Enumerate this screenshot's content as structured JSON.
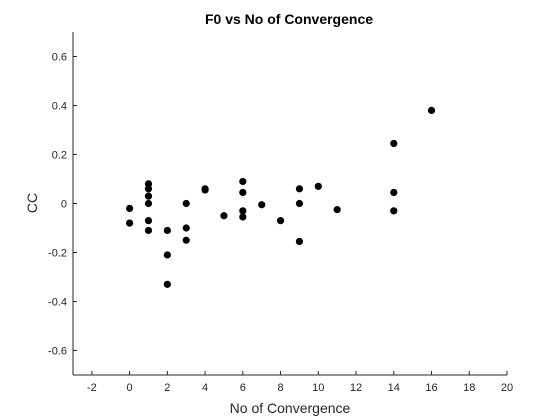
{
  "chart_data": {
    "type": "scatter",
    "title": "F0 vs No of Convergence",
    "xlabel": "No of Convergence",
    "ylabel": "CC",
    "xlim": [
      -3,
      20
    ],
    "ylim": [
      -0.7,
      0.7
    ],
    "x_ticks": [
      -2,
      0,
      2,
      4,
      6,
      8,
      10,
      12,
      14,
      16,
      18,
      20
    ],
    "y_ticks": [
      -0.6,
      -0.4,
      -0.2,
      0,
      0.2,
      0.4,
      0.6
    ],
    "x_tick_labels": [
      "-2",
      "0",
      "2",
      "4",
      "6",
      "8",
      "10",
      "12",
      "14",
      "16",
      "18",
      "20"
    ],
    "y_tick_labels": [
      "-0.6",
      "-0.4",
      "-0.2",
      "0",
      "0.2",
      "0.4",
      "0.6"
    ],
    "grid": false,
    "marker_color": "#000000",
    "points": [
      {
        "x": 0,
        "y": -0.02
      },
      {
        "x": 0,
        "y": -0.08
      },
      {
        "x": 1,
        "y": 0.08
      },
      {
        "x": 1,
        "y": 0.06
      },
      {
        "x": 1,
        "y": 0.03
      },
      {
        "x": 1,
        "y": 0.0
      },
      {
        "x": 1,
        "y": -0.07
      },
      {
        "x": 1,
        "y": -0.11
      },
      {
        "x": 2,
        "y": -0.11
      },
      {
        "x": 2,
        "y": -0.21
      },
      {
        "x": 2,
        "y": -0.33
      },
      {
        "x": 3,
        "y": 0.0
      },
      {
        "x": 3,
        "y": -0.1
      },
      {
        "x": 3,
        "y": -0.15
      },
      {
        "x": 4,
        "y": 0.06
      },
      {
        "x": 4,
        "y": 0.055
      },
      {
        "x": 5,
        "y": -0.05
      },
      {
        "x": 6,
        "y": 0.09
      },
      {
        "x": 6,
        "y": 0.045
      },
      {
        "x": 6,
        "y": -0.03
      },
      {
        "x": 6,
        "y": -0.055
      },
      {
        "x": 7,
        "y": -0.005
      },
      {
        "x": 8,
        "y": -0.07
      },
      {
        "x": 9,
        "y": 0.06
      },
      {
        "x": 9,
        "y": 0.0
      },
      {
        "x": 9,
        "y": -0.155
      },
      {
        "x": 10,
        "y": 0.07
      },
      {
        "x": 11,
        "y": -0.025
      },
      {
        "x": 14,
        "y": 0.245
      },
      {
        "x": 14,
        "y": 0.045
      },
      {
        "x": 14,
        "y": -0.03
      },
      {
        "x": 16,
        "y": 0.38
      }
    ]
  }
}
